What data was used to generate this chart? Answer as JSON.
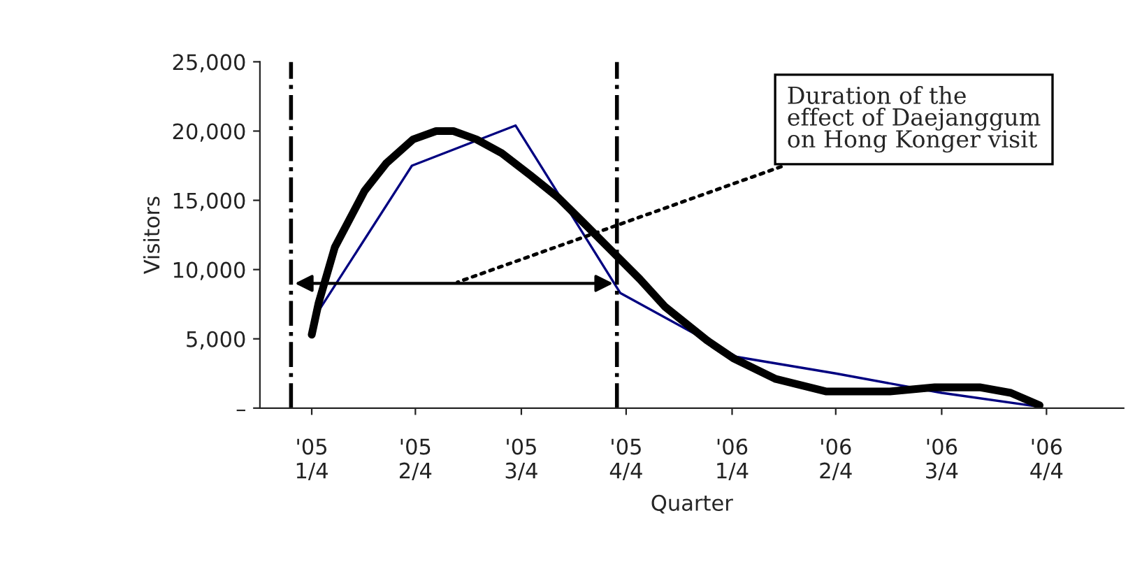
{
  "chart_data": {
    "type": "line",
    "xlabel": "Quarter",
    "ylabel": "Visitors",
    "xlim": [
      "2005-01-01",
      "2007-01-21"
    ],
    "xticks": [
      {
        "value": "2005-02-15",
        "label": "'05\n1/4"
      },
      {
        "value": "2005-05-16",
        "label": "'05\n2/4"
      },
      {
        "value": "2005-08-16",
        "label": "'05\n3/4"
      },
      {
        "value": "2005-11-15",
        "label": "'05\n4/4"
      },
      {
        "value": "2006-02-15",
        "label": "'06\n1/4"
      },
      {
        "value": "2006-05-16",
        "label": "'06\n2/4"
      },
      {
        "value": "2006-08-16",
        "label": "'06\n3/4"
      },
      {
        "value": "2006-11-15",
        "label": "'06\n4/4"
      }
    ],
    "ylim": [
      0,
      25000
    ],
    "yticks": [
      {
        "value": 0,
        "label": "–"
      },
      {
        "value": 5000,
        "label": "5,000"
      },
      {
        "value": 10000,
        "label": "10,000"
      },
      {
        "value": 15000,
        "label": "15,000"
      },
      {
        "value": 20000,
        "label": "20,000"
      },
      {
        "value": 25000,
        "label": "25,000"
      }
    ],
    "series": [
      {
        "color": "#000080",
        "x": [
          "2005-02-20",
          "2005-05-13",
          "2005-08-11",
          "2005-11-10",
          "2006-02-19",
          "2006-05-16",
          "2006-08-16",
          "2006-11-09"
        ],
        "values": [
          6900,
          17500,
          20400,
          8300,
          3700,
          2500,
          1100,
          100
        ]
      },
      {
        "color": "#000000",
        "x": [
          "2005-02-15",
          "2005-02-21",
          "2005-03-07",
          "2005-04-02",
          "2005-04-21",
          "2005-05-14",
          "2005-06-03",
          "2005-06-18",
          "2005-07-08",
          "2005-07-30",
          "2005-08-24",
          "2005-09-17",
          "2005-10-10",
          "2005-11-03",
          "2005-11-27",
          "2005-12-19",
          "2006-01-24",
          "2006-02-16",
          "2006-03-25",
          "2006-05-08",
          "2006-07-02",
          "2006-08-10",
          "2006-09-18",
          "2006-10-15",
          "2006-11-09"
        ],
        "values": [
          5300,
          7600,
          11600,
          15700,
          17700,
          19400,
          20000,
          20000,
          19400,
          18400,
          16800,
          15200,
          13300,
          11300,
          9300,
          7300,
          4900,
          3600,
          2100,
          1200,
          1200,
          1500,
          1500,
          1100,
          200
        ]
      }
    ],
    "ref_lines": [
      {
        "axis": "x",
        "value": "2005-01-28",
        "color": "#000000",
        "line_style": "dashdot"
      },
      {
        "axis": "x",
        "value": "2005-11-07",
        "color": "#000000",
        "line_style": "dashdot"
      }
    ],
    "annotations": [
      "Duration of the\neffect of Daejanggum\non Hong Konger visit"
    ],
    "grid": false,
    "legend": false
  }
}
